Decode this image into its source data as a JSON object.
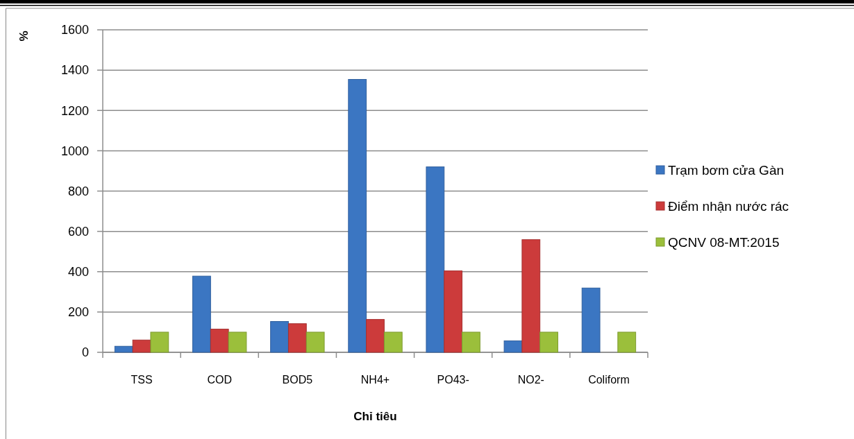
{
  "chart_data": {
    "type": "bar",
    "xlabel": "Chỉ tiêu",
    "ylabel": "%",
    "categories": [
      "TSS",
      "COD",
      "BOD5",
      "NH4+",
      "PO43-",
      "NO2-",
      "Coliform"
    ],
    "series": [
      {
        "name": "Trạm bơm cửa Gàn",
        "color": "#3b76c2",
        "values": [
          30,
          378,
          153,
          1354,
          920,
          57,
          319
        ]
      },
      {
        "name": "Điểm nhận nước rác",
        "color": "#cc3b3b",
        "values": [
          61,
          115,
          142,
          163,
          404,
          559,
          null
        ]
      },
      {
        "name": "QCNV 08-MT:2015",
        "color": "#9bbf3b",
        "values": [
          100,
          100,
          100,
          100,
          100,
          100,
          100
        ]
      }
    ],
    "ylim": [
      0,
      1600
    ],
    "yticks": [
      0,
      200,
      400,
      600,
      800,
      1000,
      1200,
      1400,
      1600
    ],
    "grid": "y",
    "legend": "right"
  }
}
